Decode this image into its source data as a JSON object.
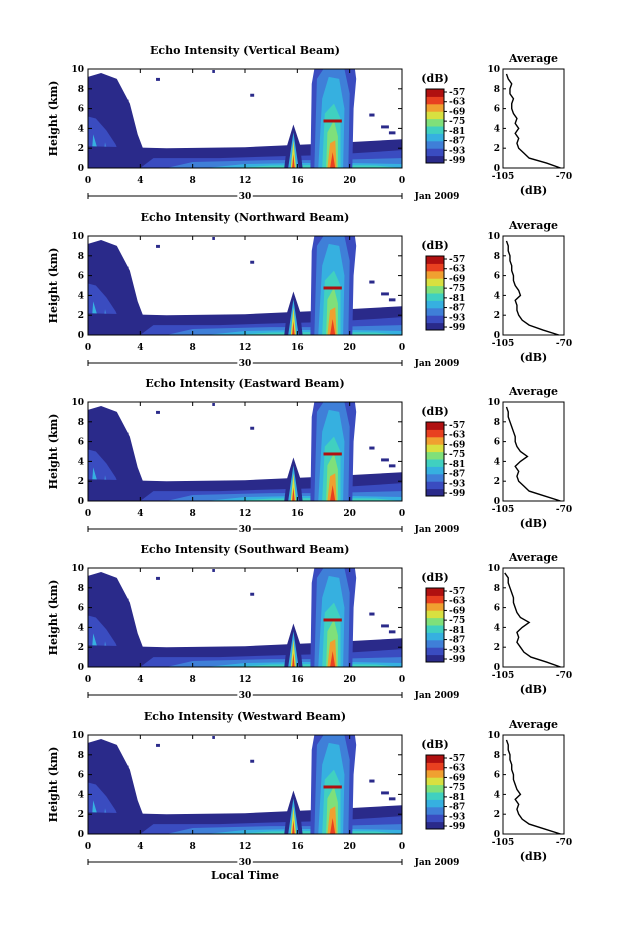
{
  "colors": [
    "#2a2a8a",
    "#3a4cc0",
    "#3f7fd8",
    "#36b0e0",
    "#40d0c0",
    "#7fe07a",
    "#d8e040",
    "#f0a030",
    "#e84020",
    "#b01010"
  ],
  "colorbar": {
    "unit": "(dB)",
    "labels": [
      "-57",
      "-63",
      "-69",
      "-75",
      "-81",
      "-87",
      "-93",
      "-99"
    ]
  },
  "xlabel": "Local Time",
  "date_label": "Jan 2009",
  "day_label": "30",
  "chart_data": [
    {
      "type": "heatmap",
      "title": "Echo Intensity (Vertical Beam)",
      "ylabel": "Height (km)",
      "xlim": [
        0,
        24
      ],
      "ylim": [
        0,
        10
      ],
      "xticks": [
        "0",
        "4",
        "8",
        "12",
        "16",
        "20",
        "0"
      ],
      "yticks": [
        "0",
        "2",
        "4",
        "6",
        "8",
        "10"
      ],
      "profile": {
        "title": "Average",
        "xlabel": "(dB)",
        "xlim": [
          -105,
          -70
        ],
        "xticks": [
          "-105",
          "-70"
        ],
        "heights": [
          0,
          0.5,
          1,
          1.5,
          2,
          2.5,
          3,
          3.5,
          4,
          4.5,
          5,
          5.5,
          6,
          6.5,
          7,
          7.5,
          8,
          8.5,
          9,
          9.5
        ],
        "values": [
          -72,
          -80,
          -90,
          -93,
          -96,
          -97,
          -96,
          -98,
          -96,
          -98,
          -97,
          -99,
          -100,
          -100,
          -99,
          -101,
          -101,
          -100,
          -102,
          -103
        ]
      }
    },
    {
      "type": "heatmap",
      "title": "Echo Intensity (Northward Beam)",
      "ylabel": "Height (km)",
      "xlim": [
        0,
        24
      ],
      "ylim": [
        0,
        10
      ],
      "xticks": [
        "0",
        "4",
        "8",
        "12",
        "16",
        "20",
        "0"
      ],
      "yticks": [
        "0",
        "2",
        "4",
        "6",
        "8",
        "10"
      ],
      "profile": {
        "title": "Average",
        "xlabel": "(dB)",
        "xlim": [
          -105,
          -70
        ],
        "xticks": [
          "-105",
          "-70"
        ],
        "heights": [
          0,
          0.5,
          1,
          1.5,
          2,
          2.5,
          3,
          3.5,
          4,
          4.5,
          5,
          5.5,
          6,
          6.5,
          7,
          7.5,
          8,
          8.5,
          9,
          9.5
        ],
        "values": [
          -73,
          -82,
          -90,
          -94,
          -96,
          -97,
          -97,
          -98,
          -95,
          -96,
          -98,
          -99,
          -99,
          -100,
          -100,
          -101,
          -101,
          -102,
          -102,
          -103
        ]
      }
    },
    {
      "type": "heatmap",
      "title": "Echo Intensity (Eastward Beam)",
      "ylabel": "Height (km)",
      "xlim": [
        0,
        24
      ],
      "ylim": [
        0,
        10
      ],
      "xticks": [
        "0",
        "4",
        "8",
        "12",
        "16",
        "20",
        "0"
      ],
      "yticks": [
        "0",
        "2",
        "4",
        "6",
        "8",
        "10"
      ],
      "profile": {
        "title": "Average",
        "xlabel": "(dB)",
        "xlim": [
          -105,
          -70
        ],
        "xticks": [
          "-105",
          "-70"
        ],
        "heights": [
          0,
          0.5,
          1,
          1.5,
          2,
          2.5,
          3,
          3.5,
          4,
          4.5,
          5,
          5.5,
          6,
          6.5,
          7,
          7.5,
          8,
          8.5,
          9,
          9.5
        ],
        "values": [
          -72,
          -81,
          -90,
          -93,
          -96,
          -97,
          -96,
          -98,
          -95,
          -91,
          -95,
          -97,
          -98,
          -98,
          -99,
          -100,
          -101,
          -102,
          -102,
          -103
        ]
      }
    },
    {
      "type": "heatmap",
      "title": "Echo Intensity (Southward Beam)",
      "ylabel": "Height (km)",
      "xlim": [
        0,
        24
      ],
      "ylim": [
        0,
        10
      ],
      "xticks": [
        "0",
        "4",
        "8",
        "12",
        "16",
        "20",
        "0"
      ],
      "yticks": [
        "0",
        "2",
        "4",
        "6",
        "8",
        "10"
      ],
      "profile": {
        "title": "Average",
        "xlabel": "(dB)",
        "xlim": [
          -105,
          -70
        ],
        "xticks": [
          "-105",
          "-70"
        ],
        "heights": [
          0,
          0.5,
          1,
          1.5,
          2,
          2.5,
          3,
          3.5,
          4,
          4.5,
          5,
          5.5,
          6,
          6.5,
          7,
          7.5,
          8,
          8.5,
          9,
          9.5
        ],
        "values": [
          -72,
          -80,
          -89,
          -93,
          -95,
          -97,
          -96,
          -97,
          -94,
          -90,
          -95,
          -97,
          -98,
          -99,
          -99,
          -100,
          -101,
          -102,
          -102,
          -104
        ]
      }
    },
    {
      "type": "heatmap",
      "title": "Echo Intensity (Westward Beam)",
      "ylabel": "Height (km)",
      "xlim": [
        0,
        24
      ],
      "ylim": [
        0,
        10
      ],
      "xticks": [
        "0",
        "4",
        "8",
        "12",
        "16",
        "20",
        "0"
      ],
      "yticks": [
        "0",
        "2",
        "4",
        "6",
        "8",
        "10"
      ],
      "profile": {
        "title": "Average",
        "xlabel": "(dB)",
        "xlim": [
          -105,
          -70
        ],
        "xticks": [
          "-105",
          "-70"
        ],
        "heights": [
          0,
          0.5,
          1,
          1.5,
          2,
          2.5,
          3,
          3.5,
          4,
          4.5,
          5,
          5.5,
          6,
          6.5,
          7,
          7.5,
          8,
          8.5,
          9,
          9.5
        ],
        "values": [
          -72,
          -81,
          -90,
          -94,
          -96,
          -97,
          -96,
          -98,
          -95,
          -97,
          -98,
          -99,
          -99,
          -100,
          -100,
          -101,
          -101,
          -102,
          -102,
          -103
        ]
      }
    }
  ]
}
